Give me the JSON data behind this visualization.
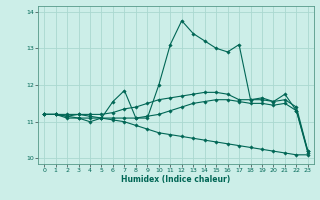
{
  "title": "",
  "xlabel": "Humidex (Indice chaleur)",
  "ylabel": "",
  "background_color": "#cceee8",
  "grid_color": "#aad8d0",
  "line_color": "#006655",
  "xlim": [
    -0.5,
    23.5
  ],
  "ylim": [
    9.85,
    14.15
  ],
  "yticks": [
    10,
    11,
    12,
    13,
    14
  ],
  "xticks": [
    0,
    1,
    2,
    3,
    4,
    5,
    6,
    7,
    8,
    9,
    10,
    11,
    12,
    13,
    14,
    15,
    16,
    17,
    18,
    19,
    20,
    21,
    22,
    23
  ],
  "series": [
    {
      "x": [
        0,
        1,
        2,
        3,
        4,
        5,
        6,
        7,
        8,
        9,
        10,
        11,
        12,
        13,
        14,
        15,
        16,
        17,
        18,
        19,
        20,
        21,
        22,
        23
      ],
      "y": [
        11.2,
        11.2,
        11.1,
        11.1,
        11.0,
        11.1,
        11.55,
        11.85,
        11.1,
        11.1,
        12.0,
        13.1,
        13.75,
        13.4,
        13.2,
        13.0,
        12.9,
        13.1,
        11.6,
        11.65,
        11.55,
        11.75,
        11.3,
        10.2
      ]
    },
    {
      "x": [
        0,
        1,
        2,
        3,
        4,
        5,
        6,
        7,
        8,
        9,
        10,
        11,
        12,
        13,
        14,
        15,
        16,
        17,
        18,
        19,
        20,
        21,
        22,
        23
      ],
      "y": [
        11.2,
        11.2,
        11.15,
        11.2,
        11.2,
        11.2,
        11.25,
        11.35,
        11.4,
        11.5,
        11.6,
        11.65,
        11.7,
        11.75,
        11.8,
        11.8,
        11.75,
        11.6,
        11.6,
        11.6,
        11.55,
        11.6,
        11.4,
        10.2
      ]
    },
    {
      "x": [
        0,
        1,
        2,
        3,
        4,
        5,
        6,
        7,
        8,
        9,
        10,
        11,
        12,
        13,
        14,
        15,
        16,
        17,
        18,
        19,
        20,
        21,
        22,
        23
      ],
      "y": [
        11.2,
        11.2,
        11.15,
        11.1,
        11.1,
        11.1,
        11.1,
        11.1,
        11.1,
        11.15,
        11.2,
        11.3,
        11.4,
        11.5,
        11.55,
        11.6,
        11.6,
        11.55,
        11.5,
        11.5,
        11.45,
        11.5,
        11.3,
        10.15
      ]
    },
    {
      "x": [
        0,
        1,
        2,
        3,
        4,
        5,
        6,
        7,
        8,
        9,
        10,
        11,
        12,
        13,
        14,
        15,
        16,
        17,
        18,
        19,
        20,
        21,
        22,
        23
      ],
      "y": [
        11.2,
        11.2,
        11.2,
        11.2,
        11.15,
        11.1,
        11.05,
        11.0,
        10.9,
        10.8,
        10.7,
        10.65,
        10.6,
        10.55,
        10.5,
        10.45,
        10.4,
        10.35,
        10.3,
        10.25,
        10.2,
        10.15,
        10.1,
        10.1
      ]
    }
  ],
  "marker": "D",
  "markersize": 1.8,
  "linewidth": 0.8
}
